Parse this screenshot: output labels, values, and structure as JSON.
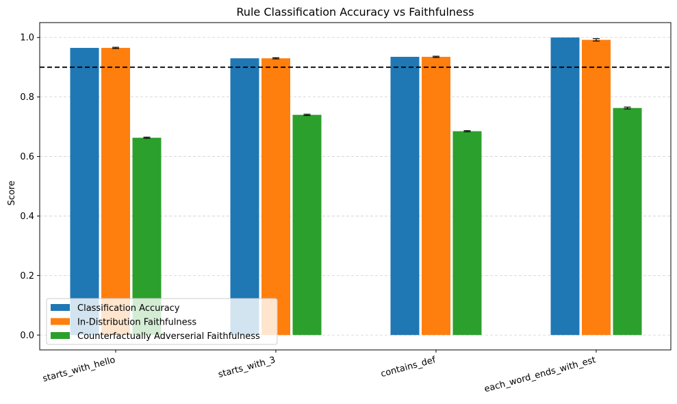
{
  "chart_data": {
    "type": "bar",
    "title": "Rule Classification Accuracy vs Faithfulness",
    "xlabel": "",
    "ylabel": "Score",
    "ylim": [
      -0.05,
      1.05
    ],
    "yticks": [
      "0.0",
      "0.2",
      "0.4",
      "0.6",
      "0.8",
      "1.0"
    ],
    "categories": [
      "starts_with_hello",
      "starts_with_3",
      "contains_def",
      "each_word_ends_with_est"
    ],
    "series": [
      {
        "name": "Classification Accuracy",
        "color": "#1f77b4",
        "values": [
          0.965,
          0.93,
          0.935,
          1.0
        ],
        "errors": [
          0,
          0,
          0,
          0
        ]
      },
      {
        "name": "In-Distribution Faithfulness",
        "color": "#ff7f0e",
        "values": [
          0.965,
          0.93,
          0.935,
          0.992
        ],
        "errors": [
          0.002,
          0.002,
          0.002,
          0.004
        ]
      },
      {
        "name": "Counterfactually Adverserial Faithfulness",
        "color": "#2ca02c",
        "values": [
          0.663,
          0.74,
          0.685,
          0.763
        ],
        "errors": [
          0.002,
          0.002,
          0.002,
          0.003
        ]
      }
    ],
    "reference_line": {
      "y": 0.9,
      "style": "dashed",
      "color": "#000000"
    },
    "grid": {
      "y": true,
      "style": "dashed"
    },
    "legend": {
      "placement": "lower-left"
    }
  }
}
